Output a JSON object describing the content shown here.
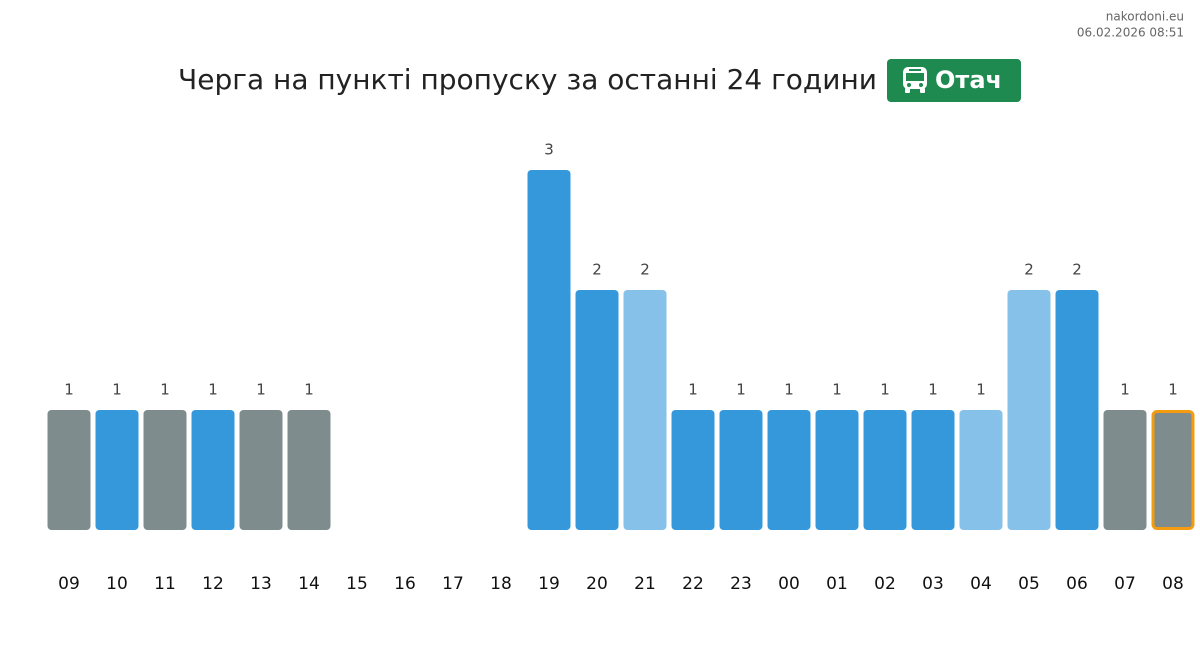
{
  "chart_data": {
    "type": "bar",
    "title": "Черга на пункті пропуску за останні 24 години",
    "badge": "Отач",
    "site": "nakordoni.eu",
    "timestamp": "06.02.2026 08:51",
    "categories": [
      "09",
      "10",
      "11",
      "12",
      "13",
      "14",
      "15",
      "16",
      "17",
      "18",
      "19",
      "20",
      "21",
      "22",
      "23",
      "00",
      "01",
      "02",
      "03",
      "04",
      "05",
      "06",
      "07",
      "08"
    ],
    "values": [
      1,
      1,
      1,
      1,
      1,
      1,
      null,
      null,
      null,
      null,
      3,
      2,
      2,
      1,
      1,
      1,
      1,
      1,
      1,
      1,
      2,
      2,
      1,
      1
    ],
    "colors": [
      "#7f8c8d",
      "#3498db",
      "#7f8c8d",
      "#3498db",
      "#7f8c8d",
      "#7f8c8d",
      null,
      null,
      null,
      null,
      "#3498db",
      "#3498db",
      "#85c1e9",
      "#3498db",
      "#3498db",
      "#3498db",
      "#3498db",
      "#3498db",
      "#3498db",
      "#85c1e9",
      "#85c1e9",
      "#3498db",
      "#7f8c8d",
      "#7f8c8d"
    ],
    "highlight": "08",
    "highlight_color": "#f39c12",
    "ylim": [
      0,
      3
    ]
  }
}
